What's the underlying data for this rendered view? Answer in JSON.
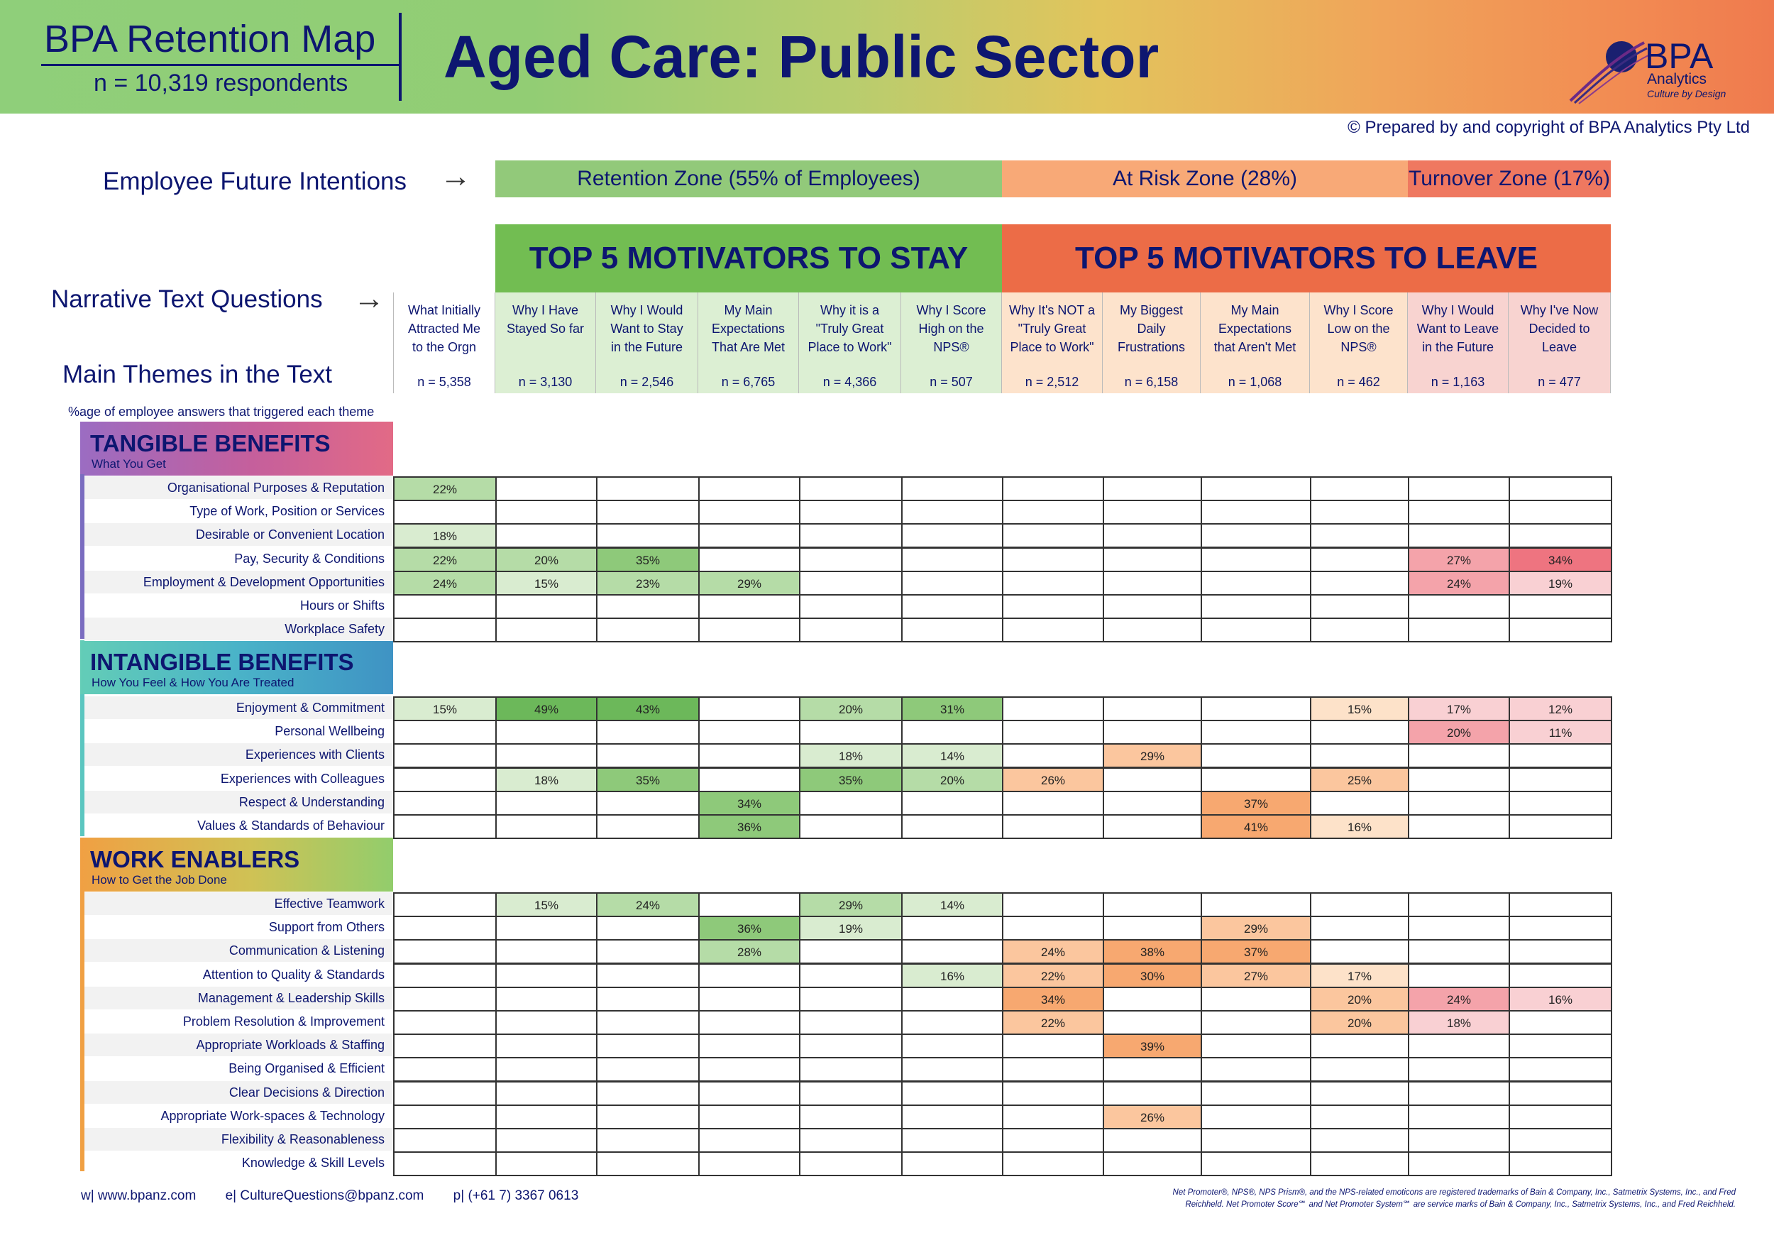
{
  "header": {
    "brand_title": "BPA Retention Map",
    "respondents": "n = 10,319 respondents",
    "page_title": "Aged Care: Public Sector",
    "logo_text": "BPA",
    "logo_sub": "Analytics",
    "logo_tagline": "Culture by Design"
  },
  "copyright": "© Prepared by and copyright of BPA Analytics Pty Ltd",
  "labels": {
    "intentions": "Employee Future Intentions",
    "narrative": "Narrative Text Questions",
    "themes": "Main Themes in the Text",
    "arrow": "→",
    "pct_note": "%age of employee answers that triggered each theme"
  },
  "zones": {
    "retention": "Retention Zone (55% of Employees)",
    "risk": "At Risk Zone (28%)",
    "turnover": "Turnover Zone (17%)"
  },
  "motivators": {
    "stay": "TOP 5 MOTIVATORS TO STAY",
    "leave": "TOP 5 MOTIVATORS TO LEAVE"
  },
  "questions": [
    {
      "l1": "What Initially",
      "l2": "Attracted Me",
      "l3": "to the Orgn",
      "n": "n = 5,358"
    },
    {
      "l1": "Why I Have",
      "l2": "Stayed So far",
      "l3": "",
      "n": "n = 3,130"
    },
    {
      "l1": "Why I Would",
      "l2": "Want to Stay",
      "l3": "in the Future",
      "n": "n = 2,546"
    },
    {
      "l1": "My Main",
      "l2": "Expectations",
      "l3": "That Are Met",
      "n": "n = 6,765"
    },
    {
      "l1": "Why it is a",
      "l2": "\"Truly Great",
      "l3": "Place to Work\"",
      "n": "n = 4,366"
    },
    {
      "l1": "Why I Score",
      "l2": "High on the",
      "l3": "NPS®",
      "n": "n = 507"
    },
    {
      "l1": "Why It's NOT a",
      "l2": "\"Truly Great",
      "l3": "Place to Work\"",
      "n": "n = 2,512"
    },
    {
      "l1": "My Biggest",
      "l2": "Daily",
      "l3": "Frustrations",
      "n": "n = 6,158"
    },
    {
      "l1": "My Main",
      "l2": "Expectations",
      "l3": "that Aren't Met",
      "n": "n = 1,068"
    },
    {
      "l1": "Why I Score",
      "l2": "Low on the",
      "l3": "NPS®",
      "n": "n = 462"
    },
    {
      "l1": "Why I Would",
      "l2": "Want to Leave",
      "l3": "in the Future",
      "n": "n = 1,163"
    },
    {
      "l1": "Why I've Now",
      "l2": "Decided to",
      "l3": "Leave",
      "n": "n = 477"
    }
  ],
  "sections": {
    "tangible": {
      "title": "TANGIBLE BENEFITS",
      "subtitle": "What You Get",
      "rows": [
        {
          "label": "Organisational Purposes & Reputation",
          "values": [
            "22%",
            "",
            "",
            "",
            "",
            "",
            "",
            "",
            "",
            "",
            "",
            ""
          ]
        },
        {
          "label": "Type of Work, Position or Services",
          "values": [
            "",
            "",
            "",
            "",
            "",
            "",
            "",
            "",
            "",
            "",
            "",
            ""
          ]
        },
        {
          "label": "Desirable or Convenient Location",
          "values": [
            "18%",
            "",
            "",
            "",
            "",
            "",
            "",
            "",
            "",
            "",
            "",
            ""
          ]
        },
        {
          "label": "Pay, Security & Conditions",
          "values": [
            "22%",
            "20%",
            "35%",
            "",
            "",
            "",
            "",
            "",
            "",
            "",
            "27%",
            "34%"
          ]
        },
        {
          "label": "Employment & Development Opportunities",
          "values": [
            "24%",
            "15%",
            "23%",
            "29%",
            "",
            "",
            "",
            "",
            "",
            "",
            "24%",
            "19%"
          ]
        },
        {
          "label": "Hours or Shifts",
          "values": [
            "",
            "",
            "",
            "",
            "",
            "",
            "",
            "",
            "",
            "",
            "",
            ""
          ]
        },
        {
          "label": "Workplace Safety",
          "values": [
            "",
            "",
            "",
            "",
            "",
            "",
            "",
            "",
            "",
            "",
            "",
            ""
          ]
        }
      ]
    },
    "intangible": {
      "title": "INTANGIBLE BENEFITS",
      "subtitle": "How You Feel & How You Are Treated",
      "rows": [
        {
          "label": "Enjoyment & Commitment",
          "values": [
            "15%",
            "49%",
            "43%",
            "",
            "20%",
            "31%",
            "",
            "",
            "",
            "15%",
            "17%",
            "12%"
          ]
        },
        {
          "label": "Personal Wellbeing",
          "values": [
            "",
            "",
            "",
            "",
            "",
            "",
            "",
            "",
            "",
            "",
            "20%",
            "11%"
          ]
        },
        {
          "label": "Experiences with Clients",
          "values": [
            "",
            "",
            "",
            "",
            "18%",
            "14%",
            "",
            "29%",
            "",
            "",
            "",
            ""
          ]
        },
        {
          "label": "Experiences with Colleagues",
          "values": [
            "",
            "18%",
            "35%",
            "",
            "35%",
            "20%",
            "26%",
            "",
            "",
            "25%",
            "",
            ""
          ]
        },
        {
          "label": "Respect & Understanding",
          "values": [
            "",
            "",
            "",
            "34%",
            "",
            "",
            "",
            "",
            "37%",
            "",
            "",
            ""
          ]
        },
        {
          "label": "Values & Standards of Behaviour",
          "values": [
            "",
            "",
            "",
            "36%",
            "",
            "",
            "",
            "",
            "41%",
            "16%",
            "",
            ""
          ]
        }
      ]
    },
    "enablers": {
      "title": "WORK ENABLERS",
      "subtitle": "How to Get the Job Done",
      "rows": [
        {
          "label": "Effective Teamwork",
          "values": [
            "",
            "15%",
            "24%",
            "",
            "29%",
            "14%",
            "",
            "",
            "",
            "",
            "",
            ""
          ]
        },
        {
          "label": "Support from Others",
          "values": [
            "",
            "",
            "",
            "36%",
            "19%",
            "",
            "",
            "",
            "29%",
            "",
            "",
            ""
          ]
        },
        {
          "label": "Communication & Listening",
          "values": [
            "",
            "",
            "",
            "28%",
            "",
            "",
            "24%",
            "38%",
            "37%",
            "",
            "",
            ""
          ]
        },
        {
          "label": "Attention to Quality & Standards",
          "values": [
            "",
            "",
            "",
            "",
            "",
            "16%",
            "22%",
            "30%",
            "27%",
            "17%",
            "",
            ""
          ]
        },
        {
          "label": "Management & Leadership Skills",
          "values": [
            "",
            "",
            "",
            "",
            "",
            "",
            "34%",
            "",
            "",
            "20%",
            "24%",
            "16%"
          ]
        },
        {
          "label": "Problem Resolution & Improvement",
          "values": [
            "",
            "",
            "",
            "",
            "",
            "",
            "22%",
            "",
            "",
            "20%",
            "18%",
            ""
          ]
        },
        {
          "label": "Appropriate Workloads & Staffing",
          "values": [
            "",
            "",
            "",
            "",
            "",
            "",
            "",
            "39%",
            "",
            "",
            "",
            ""
          ]
        },
        {
          "label": "Being Organised & Efficient",
          "values": [
            "",
            "",
            "",
            "",
            "",
            "",
            "",
            "",
            "",
            "",
            "",
            ""
          ]
        },
        {
          "label": "Clear Decisions & Direction",
          "values": [
            "",
            "",
            "",
            "",
            "",
            "",
            "",
            "",
            "",
            "",
            "",
            ""
          ]
        },
        {
          "label": "Appropriate Work-spaces & Technology",
          "values": [
            "",
            "",
            "",
            "",
            "",
            "",
            "",
            "26%",
            "",
            "",
            "",
            ""
          ]
        },
        {
          "label": "Flexibility & Reasonableness",
          "values": [
            "",
            "",
            "",
            "",
            "",
            "",
            "",
            "",
            "",
            "",
            "",
            ""
          ]
        },
        {
          "label": "Knowledge & Skill Levels",
          "values": [
            "",
            "",
            "",
            "",
            "",
            "",
            "",
            "",
            "",
            "",
            "",
            ""
          ]
        }
      ]
    }
  },
  "colors": {
    "stay_header": "#72bd52",
    "leave_header": "#ec6c47",
    "retention_zone": "#92c97a",
    "risk_zone": "#f8a977",
    "turnover_zone": "#ef7860",
    "stay_cols_bg": "#dcefd3",
    "risk_cols_bg": "#fde3cc",
    "turnover_cols_bg": "#f8d3d0",
    "title_text": "#0d1670"
  },
  "footer": {
    "web": "w|   www.bpanz.com",
    "email": "e|   CultureQuestions@bpanz.com",
    "phone": "p|   (+61 7) 3367 0613",
    "trademark": "Net Promoter®, NPS®, NPS Prism®, and the NPS-related emoticons are registered trademarks of Bain & Company, Inc., Satmetrix Systems, Inc., and Fred Reichheld. Net Promoter Score℠ and Net Promoter System℠ are service marks of Bain & Company, Inc., Satmetrix Systems, Inc., and Fred Reichheld."
  }
}
